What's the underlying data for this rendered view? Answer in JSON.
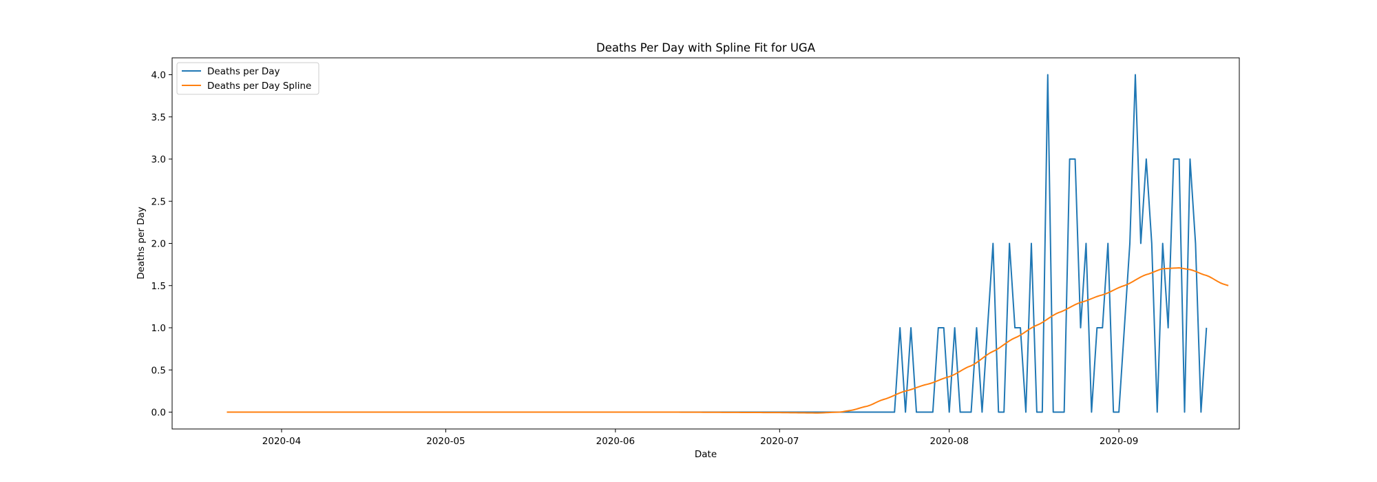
{
  "chart_data": {
    "type": "line",
    "title": "Deaths Per Day with Spline Fit for UGA",
    "xlabel": "Date",
    "ylabel": "Deaths per Day",
    "x_start": "2020-03-22",
    "x_end": "2020-09-18",
    "xlim_days": [
      -10,
      185
    ],
    "ylim": [
      -0.2,
      4.2
    ],
    "yticks": [
      0.0,
      0.5,
      1.0,
      1.5,
      2.0,
      2.5,
      3.0,
      3.5,
      4.0
    ],
    "ytick_labels": [
      "0.0",
      "0.5",
      "1.0",
      "1.5",
      "2.0",
      "2.5",
      "3.0",
      "3.5",
      "4.0"
    ],
    "xticks": [
      {
        "day": 10,
        "label": "2020-04"
      },
      {
        "day": 40,
        "label": "2020-05"
      },
      {
        "day": 71,
        "label": "2020-06"
      },
      {
        "day": 101,
        "label": "2020-07"
      },
      {
        "day": 132,
        "label": "2020-08"
      },
      {
        "day": 163,
        "label": "2020-09"
      }
    ],
    "legend": {
      "position": "top-left"
    },
    "series": [
      {
        "name": "Deaths per Day",
        "color": "#1f77b4",
        "start_day": 0,
        "values": [
          0,
          0,
          0,
          0,
          0,
          0,
          0,
          0,
          0,
          0,
          0,
          0,
          0,
          0,
          0,
          0,
          0,
          0,
          0,
          0,
          0,
          0,
          0,
          0,
          0,
          0,
          0,
          0,
          0,
          0,
          0,
          0,
          0,
          0,
          0,
          0,
          0,
          0,
          0,
          0,
          0,
          0,
          0,
          0,
          0,
          0,
          0,
          0,
          0,
          0,
          0,
          0,
          0,
          0,
          0,
          0,
          0,
          0,
          0,
          0,
          0,
          0,
          0,
          0,
          0,
          0,
          0,
          0,
          0,
          0,
          0,
          0,
          0,
          0,
          0,
          0,
          0,
          0,
          0,
          0,
          0,
          0,
          0,
          0,
          0,
          0,
          0,
          0,
          0,
          0,
          0,
          0,
          0,
          0,
          0,
          0,
          0,
          0,
          0,
          0,
          0,
          0,
          0,
          0,
          0,
          0,
          0,
          0,
          0,
          0,
          0,
          0,
          0,
          0,
          0,
          0,
          0,
          0,
          0,
          0,
          0,
          0,
          0,
          1,
          0,
          1,
          0,
          0,
          0,
          0,
          1,
          1,
          0,
          1,
          0,
          0,
          0,
          1,
          0,
          1,
          2,
          0,
          0,
          2,
          1,
          1,
          0,
          2,
          0,
          0,
          4,
          0,
          0,
          0,
          3,
          3,
          1,
          2,
          0,
          1,
          1,
          2,
          0,
          0,
          1,
          2,
          4,
          2,
          3,
          2,
          0,
          2,
          1,
          3,
          3,
          0,
          3,
          2,
          0,
          1
        ]
      },
      {
        "name": "Deaths per Day Spline",
        "color": "#ff7f0e",
        "knots": [
          [
            0,
            0.0
          ],
          [
            80,
            0.0
          ],
          [
            100,
            -0.005
          ],
          [
            108,
            -0.01
          ],
          [
            112,
            0.0
          ],
          [
            114,
            0.02
          ],
          [
            117,
            0.07
          ],
          [
            120,
            0.15
          ],
          [
            124,
            0.25
          ],
          [
            128,
            0.33
          ],
          [
            132,
            0.42
          ],
          [
            136,
            0.55
          ],
          [
            140,
            0.72
          ],
          [
            144,
            0.88
          ],
          [
            148,
            1.03
          ],
          [
            152,
            1.18
          ],
          [
            156,
            1.3
          ],
          [
            160,
            1.39
          ],
          [
            164,
            1.5
          ],
          [
            168,
            1.63
          ],
          [
            171,
            1.7
          ],
          [
            174,
            1.71
          ],
          [
            176,
            1.69
          ],
          [
            179,
            1.62
          ],
          [
            182,
            1.52
          ],
          [
            183,
            1.5
          ]
        ]
      }
    ]
  }
}
